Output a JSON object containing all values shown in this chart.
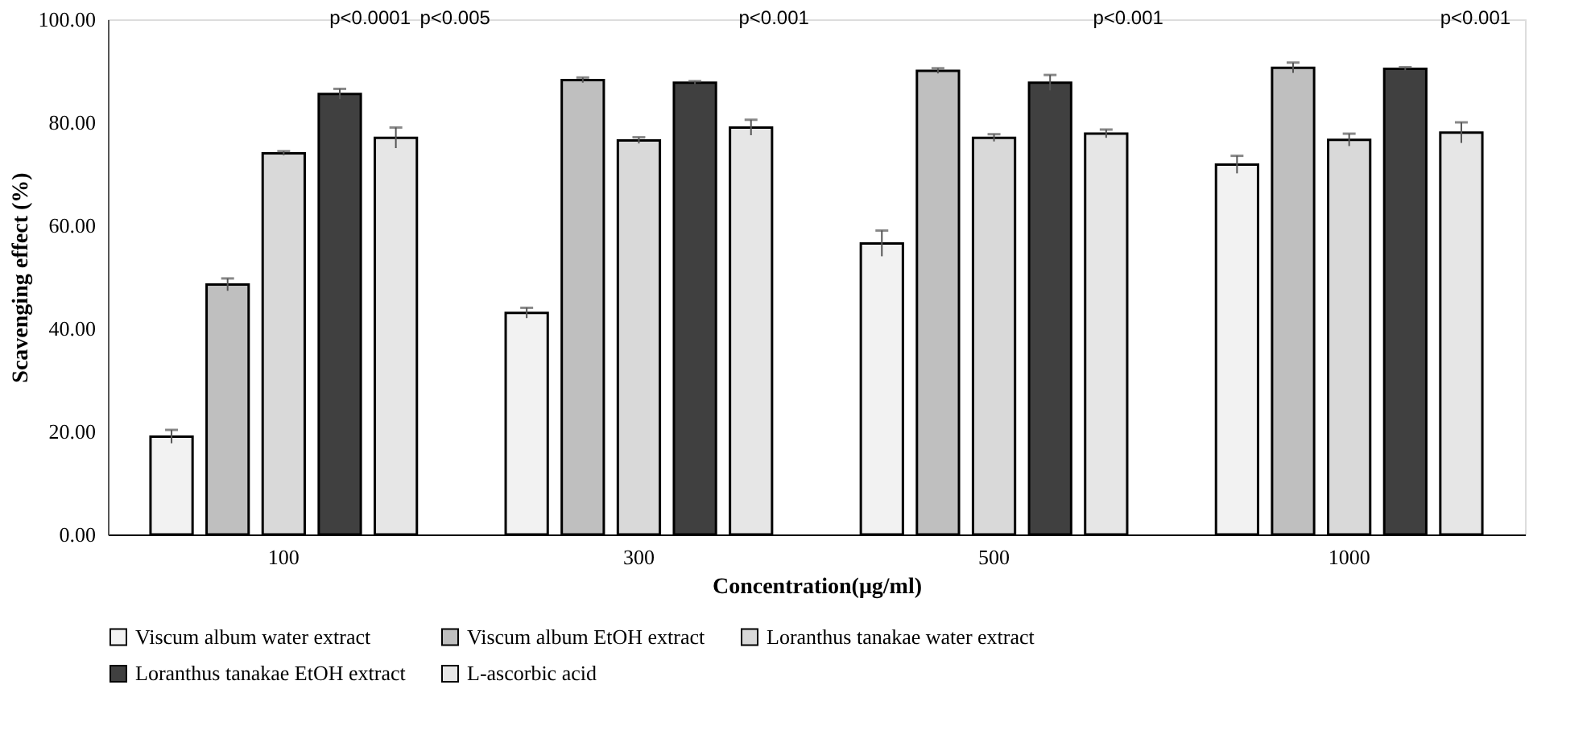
{
  "chart_data": {
    "type": "bar",
    "xlabel": "Concentration(μg/ml)",
    "ylabel": "Scavenging effect (%)",
    "categories": [
      "100",
      "300",
      "500",
      "1000"
    ],
    "series": [
      {
        "name": "Viscum album water extract",
        "color": "#f2f2f2",
        "values": [
          19.0,
          43.0,
          56.5,
          71.8
        ],
        "errors": [
          1.3,
          1.0,
          2.5,
          1.7
        ]
      },
      {
        "name": "Viscum album EtOH extract",
        "color": "#bfbfbf",
        "values": [
          48.5,
          88.2,
          90.0,
          90.6
        ],
        "errors": [
          1.2,
          0.5,
          0.5,
          1.0
        ]
      },
      {
        "name": "Loranthus tanakae water extract",
        "color": "#d9d9d9",
        "values": [
          74.0,
          76.5,
          77.0,
          76.6
        ],
        "errors": [
          0.4,
          0.6,
          0.7,
          1.2
        ]
      },
      {
        "name": "Loranthus tanakae EtOH extract",
        "color": "#404040",
        "values": [
          85.5,
          87.7,
          87.7,
          90.4
        ],
        "errors": [
          1.0,
          0.3,
          1.5,
          0.3
        ]
      },
      {
        "name": "L-ascorbic acid",
        "color": "#e6e6e6",
        "values": [
          77.0,
          79.0,
          77.8,
          78.0
        ],
        "errors": [
          2.0,
          1.5,
          0.8,
          2.0
        ]
      }
    ],
    "ylim": [
      0,
      100
    ],
    "yticks": [
      {
        "value": 0,
        "label": "0.00"
      },
      {
        "value": 20,
        "label": "20.00"
      },
      {
        "value": 40,
        "label": "40.00"
      },
      {
        "value": 60,
        "label": "60.00"
      },
      {
        "value": 80,
        "label": "80.00"
      },
      {
        "value": 100,
        "label": "100.00"
      }
    ],
    "grid": false,
    "legend": "bottom",
    "annotations": [
      "p<0.0001",
      "p<0.005",
      "p<0.001",
      "p<0.001",
      "p<0.001"
    ]
  }
}
